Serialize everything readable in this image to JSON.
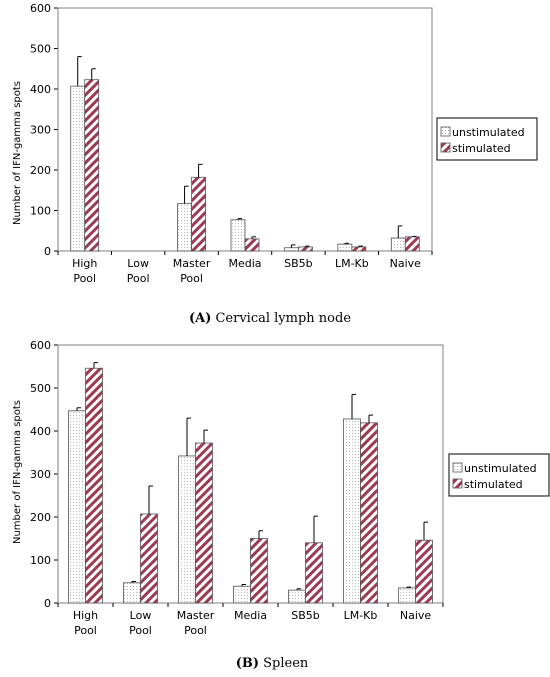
{
  "chart_data": [
    {
      "type": "bar",
      "caption_letter": "(A)",
      "caption_text": " Cervical lymph node",
      "ylabel": "Number of IFN-gamma spots",
      "ylim": [
        0,
        600
      ],
      "yticks": [
        0,
        100,
        200,
        300,
        400,
        500,
        600
      ],
      "categories": [
        [
          "High",
          "Pool"
        ],
        [
          "Low",
          "Pool"
        ],
        [
          "Master",
          "Pool"
        ],
        [
          "Media"
        ],
        [
          "SB5b"
        ],
        [
          "LM-Kb"
        ],
        [
          "Naive"
        ]
      ],
      "series": [
        {
          "name": "unstimulated",
          "values": [
            407,
            0,
            117,
            77,
            8,
            17,
            32
          ],
          "errors": [
            73,
            0,
            43,
            3,
            7,
            2,
            30
          ]
        },
        {
          "name": "stimulated",
          "values": [
            423,
            0,
            182,
            30,
            10,
            10,
            35
          ],
          "errors": [
            27,
            0,
            32,
            5,
            2,
            2,
            1
          ]
        }
      ],
      "legend_position": "right"
    },
    {
      "type": "bar",
      "caption_letter": "(B)",
      "caption_text": " Spleen",
      "ylabel": "Number of IFN-gamma spots",
      "ylim": [
        0,
        600
      ],
      "yticks": [
        0,
        100,
        200,
        300,
        400,
        500,
        600
      ],
      "categories": [
        [
          "High",
          "Pool"
        ],
        [
          "Low",
          "Pool"
        ],
        [
          "Master",
          "Pool"
        ],
        [
          "Media"
        ],
        [
          "SB5b"
        ],
        [
          "LM-Kb"
        ],
        [
          "Naive"
        ]
      ],
      "series": [
        {
          "name": "unstimulated",
          "values": [
            447,
            47,
            342,
            39,
            30,
            428,
            35
          ],
          "errors": [
            7,
            3,
            88,
            4,
            3,
            57,
            2
          ]
        },
        {
          "name": "stimulated",
          "values": [
            546,
            207,
            372,
            150,
            140,
            419,
            146
          ],
          "errors": [
            13,
            65,
            30,
            18,
            62,
            18,
            42
          ]
        }
      ],
      "legend_position": "right"
    }
  ]
}
